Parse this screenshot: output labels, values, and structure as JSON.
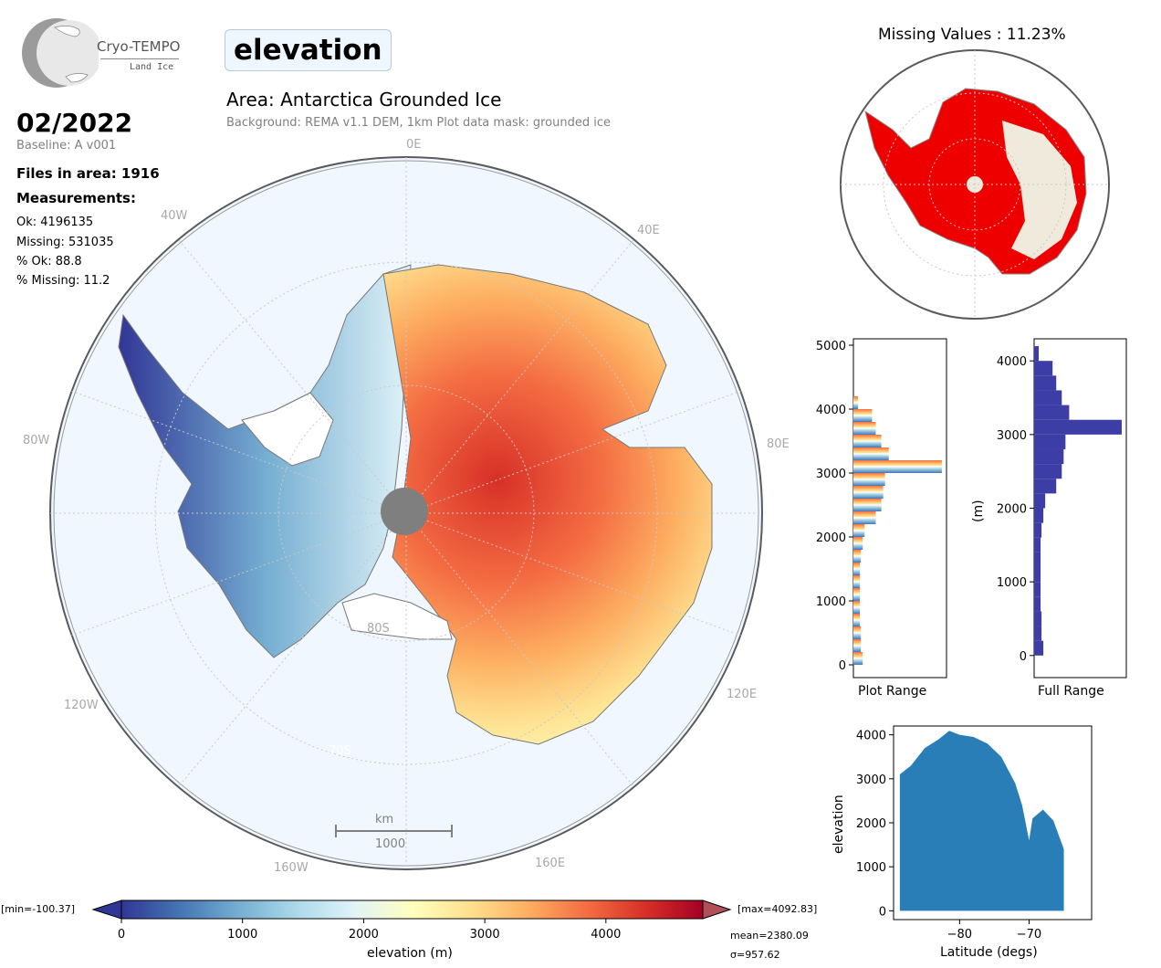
{
  "header": {
    "logo_name": "Cryo-TEMPO",
    "logo_sub": "Land Ice",
    "variable": "elevation",
    "area_title": "Area: Antarctica Grounded Ice",
    "area_subtitle": "Background: REMA v1.1 DEM, 1km   Plot data mask: grounded ice"
  },
  "stats": {
    "date": "02/2022",
    "baseline": "Baseline: A v001",
    "files": "Files in area: 1916",
    "measurements_label": "Measurements:",
    "ok": "Ok: 4196135",
    "missing": "Missing: 531035",
    "pct_ok": "% Ok: 88.8",
    "pct_missing": "% Missing: 11.2"
  },
  "main_map": {
    "lon_labels": [
      "0E",
      "40E",
      "80E",
      "120E",
      "160E",
      "160W",
      "120W",
      "80W",
      "40W"
    ],
    "lat_labels": [
      "80S",
      "70S"
    ],
    "scale_unit": "km",
    "scale_value": "1000",
    "colors": {
      "ocean": "#f0f7ff",
      "pole_hole": "#7f7f7f",
      "coast": "#888888"
    }
  },
  "missing_map": {
    "title": "Missing Values : 11.23%",
    "colors": {
      "missing": "#ee0000",
      "land": "#efeadb"
    }
  },
  "colorbar": {
    "ticks": [
      "0",
      "1000",
      "2000",
      "3000",
      "4000"
    ],
    "label": "elevation (m)",
    "min_label": "[min=-100.37]",
    "max_label": "[max=4092.83]",
    "mean_label": "mean=2380.09",
    "sigma_label": "σ=957.62",
    "colors": [
      "#313695",
      "#4575b4",
      "#74add1",
      "#abd9e9",
      "#e0f3f8",
      "#ffffbf",
      "#fee090",
      "#fdae61",
      "#f46d43",
      "#d73027",
      "#a50026"
    ]
  },
  "hist_plot": {
    "xlabel": "Plot Range",
    "yticks": [
      "0",
      "1000",
      "2000",
      "3000",
      "4000",
      "5000"
    ]
  },
  "hist_full": {
    "xlabel": "Full Range",
    "ylabel": "(m)",
    "yticks": [
      "0",
      "1000",
      "2000",
      "3000",
      "4000"
    ],
    "color": "#3d3da6"
  },
  "chart_data": [
    {
      "type": "bar",
      "orientation": "horizontal",
      "title": "",
      "xlabel": "Plot Range",
      "ylabel": "",
      "ylim": [
        -200,
        5100
      ],
      "categories": [
        0,
        200,
        400,
        600,
        800,
        1000,
        1200,
        1400,
        1600,
        1800,
        2000,
        2200,
        2400,
        2600,
        2800,
        3000,
        3200,
        3400,
        3600,
        3800,
        4000
      ],
      "values": [
        0.1,
        0.08,
        0.08,
        0.07,
        0.07,
        0.07,
        0.07,
        0.07,
        0.08,
        0.1,
        0.12,
        0.24,
        0.3,
        0.32,
        0.34,
        0.95,
        0.38,
        0.3,
        0.24,
        0.2,
        0.05
      ]
    },
    {
      "type": "bar",
      "orientation": "horizontal",
      "title": "",
      "xlabel": "Full Range",
      "ylabel": "(m)",
      "ylim": [
        -300,
        4300
      ],
      "categories": [
        0,
        200,
        400,
        600,
        800,
        1000,
        1200,
        1400,
        1600,
        1800,
        2000,
        2200,
        2400,
        2600,
        2800,
        3000,
        3200,
        3400,
        3600,
        3800,
        4000
      ],
      "values": [
        0.1,
        0.08,
        0.08,
        0.07,
        0.07,
        0.07,
        0.07,
        0.07,
        0.08,
        0.1,
        0.12,
        0.24,
        0.3,
        0.32,
        0.34,
        0.95,
        0.38,
        0.3,
        0.24,
        0.2,
        0.05
      ]
    },
    {
      "type": "scatter",
      "title": "",
      "xlabel": "Latitude (degs)",
      "ylabel": "elevation",
      "xlim": [
        -89.5,
        -61
      ],
      "ylim": [
        -200,
        4200
      ],
      "xticks": [
        "−80",
        "−70"
      ],
      "yticks": [
        "0",
        "1000",
        "2000",
        "3000",
        "4000"
      ],
      "color": "#1f77b4",
      "upper_envelope": [
        [
          -88.6,
          3100
        ],
        [
          -87,
          3300
        ],
        [
          -85,
          3700
        ],
        [
          -83,
          3900
        ],
        [
          -81.5,
          4090
        ],
        [
          -80,
          4000
        ],
        [
          -78,
          3950
        ],
        [
          -76,
          3800
        ],
        [
          -74,
          3500
        ],
        [
          -72,
          2900
        ],
        [
          -71,
          2400
        ],
        [
          -70,
          1600
        ],
        [
          -69.5,
          2100
        ],
        [
          -68,
          2300
        ],
        [
          -66.5,
          2050
        ],
        [
          -65,
          1400
        ]
      ],
      "lower_bound": 0
    }
  ]
}
